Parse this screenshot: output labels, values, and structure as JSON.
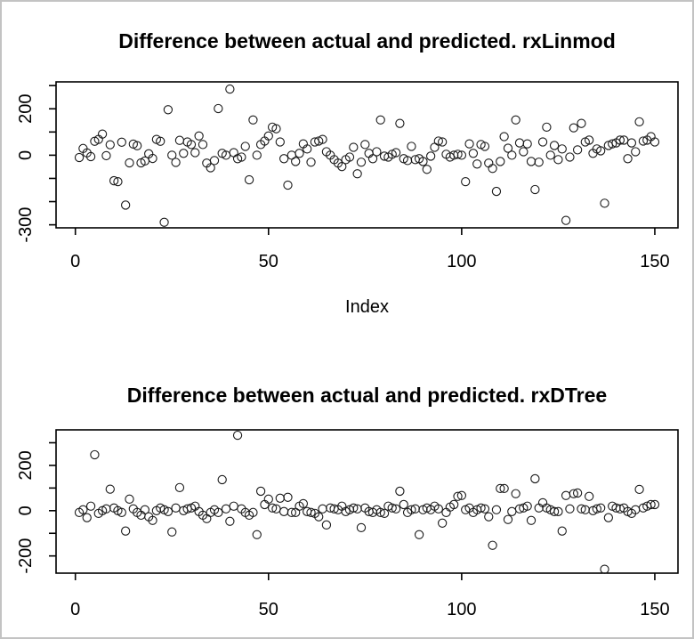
{
  "window": {
    "background": "#ffffff",
    "border_color": "#c3c3c3",
    "marker_color": "#1a1a1a"
  },
  "chart_data": [
    {
      "type": "scatter",
      "title": "Difference between actual and predicted. rxLinmod",
      "xlabel": "Index",
      "ylabel": "",
      "marker": "open-circle",
      "grid": false,
      "legend": "none",
      "x_start": 1,
      "xlim": [
        -5,
        156
      ],
      "ylim": [
        -313,
        316
      ],
      "x_ticks": [
        0,
        50,
        100,
        150
      ],
      "x_tick_labels": [
        "0",
        "50",
        "100",
        "150"
      ],
      "y_ticks": [
        -300,
        -200,
        -100,
        0,
        100,
        200,
        300
      ],
      "y_tick_labels": [
        "-300",
        "",
        "",
        "0",
        "",
        "200",
        ""
      ],
      "y": [
        -10,
        29,
        10,
        -6,
        60,
        68,
        91,
        -2,
        45,
        -110,
        -114,
        56,
        -215,
        -33,
        48,
        41,
        -33,
        -25,
        6,
        -14,
        68,
        60,
        -289,
        196,
        0,
        -31,
        64,
        8,
        57,
        46,
        11,
        83,
        46,
        -34,
        -54,
        -23,
        201,
        8,
        0,
        285,
        11,
        -15,
        -8,
        38,
        -106,
        152,
        0,
        46,
        61,
        83,
        121,
        114,
        57,
        -15,
        -129,
        0,
        -27,
        8,
        49,
        27,
        -30,
        57,
        61,
        68,
        15,
        0,
        -19,
        -34,
        -49,
        -19,
        -8,
        34,
        -80,
        -30,
        46,
        8,
        -15,
        15,
        152,
        -4,
        -8,
        4,
        11,
        137,
        -15,
        -23,
        38,
        -19,
        -15,
        -27,
        -61,
        -4,
        34,
        61,
        57,
        4,
        -8,
        0,
        4,
        0,
        -114,
        49,
        8,
        -38,
        46,
        38,
        -34,
        -57,
        -156,
        -27,
        80,
        30,
        0,
        152,
        53,
        15,
        49,
        -27,
        -148,
        -30,
        57,
        121,
        0,
        42,
        -19,
        27,
        -281,
        -8,
        118,
        23,
        137,
        57,
        65,
        8,
        27,
        19,
        -207,
        42,
        49,
        53,
        65,
        65,
        -15,
        53,
        15,
        144,
        61,
        65,
        80,
        57
      ]
    },
    {
      "type": "scatter",
      "title": "Difference between actual and predicted. rxDTree",
      "xlabel": "",
      "ylabel": "",
      "marker": "open-circle",
      "grid": false,
      "legend": "none",
      "x_start": 1,
      "xlim": [
        -5,
        156
      ],
      "ylim": [
        -276,
        357
      ],
      "x_ticks": [
        0,
        50,
        100,
        150
      ],
      "x_tick_labels": [
        "0",
        "50",
        "100",
        "150"
      ],
      "y_ticks": [
        -200,
        -100,
        0,
        100,
        200,
        300
      ],
      "y_tick_labels": [
        "-200",
        "",
        "0",
        "",
        "200",
        ""
      ],
      "y": [
        -8,
        4,
        -31,
        20,
        247,
        -12,
        0,
        8,
        95,
        12,
        0,
        -8,
        -90,
        51,
        8,
        -8,
        -20,
        4,
        -27,
        -43,
        0,
        12,
        4,
        -4,
        -94,
        12,
        102,
        0,
        8,
        12,
        20,
        -4,
        -20,
        -35,
        -8,
        4,
        -8,
        137,
        8,
        -47,
        20,
        333,
        8,
        -8,
        -20,
        -8,
        -106,
        86,
        27,
        51,
        12,
        8,
        55,
        -4,
        59,
        -8,
        -8,
        20,
        31,
        -4,
        -8,
        -12,
        -27,
        8,
        -63,
        12,
        8,
        4,
        20,
        -4,
        4,
        12,
        8,
        -75,
        12,
        -4,
        -8,
        4,
        -8,
        -12,
        20,
        12,
        8,
        86,
        27,
        -8,
        4,
        8,
        -106,
        4,
        12,
        4,
        20,
        8,
        -55,
        -8,
        16,
        27,
        63,
        67,
        4,
        12,
        -8,
        4,
        12,
        8,
        -27,
        -153,
        4,
        98,
        98,
        -39,
        -4,
        75,
        8,
        12,
        20,
        -43,
        141,
        12,
        35,
        12,
        4,
        -4,
        -4,
        -90,
        67,
        8,
        75,
        78,
        8,
        4,
        63,
        0,
        8,
        12,
        -259,
        -31,
        20,
        12,
        8,
        12,
        -4,
        -12,
        4,
        94,
        12,
        20,
        27,
        27
      ]
    }
  ]
}
